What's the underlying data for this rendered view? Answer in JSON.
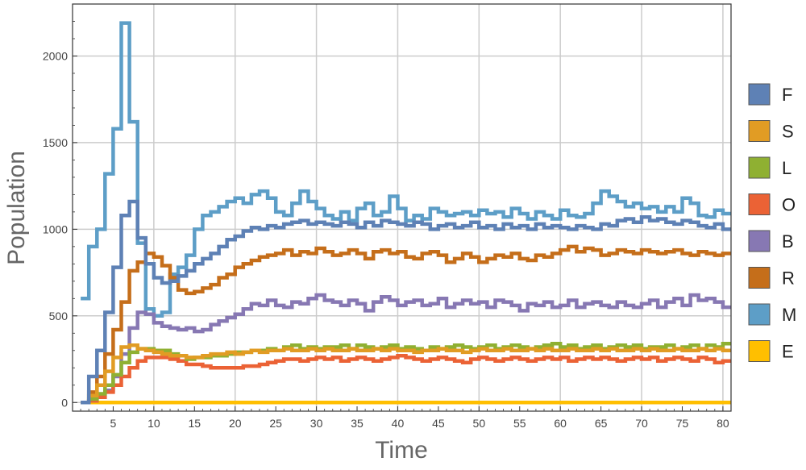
{
  "chart_data": {
    "type": "line",
    "step": true,
    "title": "",
    "xlabel": "Time",
    "ylabel": "Population",
    "xlim": [
      0,
      81
    ],
    "ylim": [
      -50,
      2300
    ],
    "xticks": [
      5,
      10,
      15,
      20,
      25,
      30,
      35,
      40,
      45,
      50,
      55,
      60,
      65,
      70,
      75,
      80
    ],
    "yticks": [
      0,
      500,
      1000,
      1500,
      2000
    ],
    "grid": true,
    "legend_position": "right",
    "x": [
      1,
      2,
      3,
      4,
      5,
      6,
      7,
      8,
      9,
      10,
      11,
      12,
      13,
      14,
      15,
      16,
      17,
      18,
      19,
      20,
      21,
      22,
      23,
      24,
      25,
      26,
      27,
      28,
      29,
      30,
      31,
      32,
      33,
      34,
      35,
      36,
      37,
      38,
      39,
      40,
      41,
      42,
      43,
      44,
      45,
      46,
      47,
      48,
      49,
      50,
      51,
      52,
      53,
      54,
      55,
      56,
      57,
      58,
      59,
      60,
      61,
      62,
      63,
      64,
      65,
      66,
      67,
      68,
      69,
      70,
      71,
      72,
      73,
      74,
      75,
      76,
      77,
      78,
      79,
      80
    ],
    "series": [
      {
        "name": "F",
        "color": "#5E81B5",
        "values": [
          0,
          150,
          300,
          520,
          780,
          1080,
          1160,
          950,
          800,
          720,
          690,
          700,
          730,
          760,
          800,
          830,
          860,
          900,
          940,
          960,
          990,
          1010,
          1000,
          1020,
          1010,
          1030,
          1040,
          1050,
          1030,
          1040,
          1030,
          1020,
          1040,
          1030,
          1010,
          1040,
          1020,
          1050,
          1040,
          1030,
          1020,
          1040,
          1030,
          1000,
          1020,
          1030,
          1010,
          1020,
          1040,
          1010,
          1020,
          1000,
          1030,
          1010,
          1020,
          1000,
          1030,
          1010,
          1020,
          1010,
          1000,
          1020,
          1010,
          1000,
          1030,
          1020,
          1050,
          1060,
          1040,
          1070,
          1050,
          1060,
          1040,
          1030,
          1050,
          1040,
          1020,
          1010,
          1030,
          1000
        ]
      },
      {
        "name": "S",
        "color": "#E19C24",
        "values": [
          0,
          40,
          100,
          180,
          260,
          320,
          330,
          310,
          300,
          290,
          280,
          270,
          270,
          260,
          260,
          270,
          280,
          280,
          290,
          280,
          290,
          300,
          290,
          300,
          300,
          310,
          300,
          300,
          310,
          300,
          310,
          300,
          300,
          310,
          300,
          300,
          310,
          300,
          310,
          300,
          300,
          290,
          300,
          300,
          310,
          300,
          300,
          290,
          300,
          310,
          300,
          300,
          310,
          300,
          300,
          310,
          300,
          310,
          300,
          300,
          310,
          300,
          300,
          310,
          300,
          310,
          300,
          300,
          310,
          300,
          310,
          300,
          300,
          310,
          300,
          300,
          310,
          300,
          310,
          300
        ]
      },
      {
        "name": "L",
        "color": "#8FB032",
        "values": [
          0,
          20,
          50,
          100,
          160,
          230,
          290,
          310,
          310,
          300,
          300,
          280,
          270,
          250,
          260,
          260,
          270,
          270,
          280,
          290,
          290,
          300,
          300,
          310,
          300,
          320,
          330,
          310,
          320,
          310,
          320,
          320,
          330,
          310,
          330,
          320,
          310,
          320,
          330,
          310,
          320,
          310,
          300,
          320,
          310,
          320,
          330,
          320,
          310,
          320,
          330,
          310,
          320,
          330,
          320,
          310,
          320,
          330,
          340,
          320,
          330,
          310,
          320,
          330,
          310,
          320,
          330,
          320,
          330,
          310,
          320,
          320,
          330,
          310,
          320,
          330,
          310,
          330,
          320,
          340
        ]
      },
      {
        "name": "O",
        "color": "#EB6235",
        "values": [
          0,
          10,
          30,
          60,
          100,
          150,
          200,
          240,
          260,
          260,
          260,
          250,
          240,
          220,
          220,
          210,
          200,
          200,
          200,
          200,
          210,
          210,
          220,
          230,
          240,
          250,
          250,
          240,
          250,
          260,
          250,
          260,
          240,
          250,
          260,
          250,
          240,
          250,
          260,
          270,
          260,
          250,
          240,
          250,
          260,
          250,
          240,
          230,
          250,
          260,
          250,
          240,
          250,
          260,
          250,
          240,
          250,
          260,
          250,
          260,
          240,
          250,
          260,
          250,
          260,
          250,
          240,
          250,
          260,
          250,
          260,
          240,
          250,
          260,
          250,
          240,
          260,
          250,
          230,
          240
        ]
      },
      {
        "name": "B",
        "color": "#8778B3",
        "values": [
          0,
          10,
          30,
          70,
          150,
          280,
          430,
          520,
          510,
          460,
          440,
          430,
          420,
          430,
          410,
          420,
          450,
          470,
          490,
          510,
          540,
          570,
          560,
          590,
          560,
          550,
          580,
          570,
          600,
          620,
          590,
          580,
          560,
          590,
          570,
          530,
          580,
          610,
          590,
          560,
          580,
          590,
          560,
          570,
          600,
          550,
          570,
          590,
          570,
          580,
          550,
          590,
          580,
          560,
          530,
          570,
          560,
          580,
          550,
          560,
          590,
          550,
          570,
          580,
          560,
          550,
          580,
          560,
          550,
          570,
          590,
          550,
          580,
          600,
          560,
          620,
          590,
          600,
          580,
          550
        ]
      },
      {
        "name": "R",
        "color": "#C56E1A",
        "values": [
          0,
          60,
          150,
          280,
          420,
          580,
          760,
          810,
          860,
          840,
          790,
          720,
          650,
          630,
          640,
          660,
          680,
          720,
          740,
          780,
          800,
          820,
          840,
          850,
          860,
          880,
          850,
          870,
          860,
          890,
          870,
          850,
          860,
          880,
          860,
          830,
          870,
          880,
          860,
          870,
          840,
          830,
          860,
          870,
          850,
          810,
          830,
          860,
          840,
          810,
          830,
          850,
          840,
          860,
          830,
          820,
          850,
          840,
          860,
          880,
          900,
          870,
          890,
          880,
          850,
          860,
          880,
          870,
          860,
          880,
          870,
          860,
          870,
          880,
          860,
          850,
          870,
          860,
          850,
          860
        ]
      },
      {
        "name": "M",
        "color": "#5D9EC7",
        "values": [
          600,
          900,
          1000,
          1320,
          1580,
          2190,
          1620,
          920,
          540,
          500,
          520,
          740,
          780,
          850,
          1000,
          1080,
          1100,
          1130,
          1160,
          1180,
          1150,
          1200,
          1220,
          1180,
          1100,
          1080,
          1150,
          1220,
          1160,
          1120,
          1080,
          1060,
          1100,
          1050,
          1120,
          1150,
          1080,
          1100,
          1190,
          1120,
          1050,
          1080,
          1060,
          1120,
          1100,
          1080,
          1090,
          1100,
          1080,
          1110,
          1090,
          1100,
          1070,
          1120,
          1090,
          1060,
          1100,
          1080,
          1060,
          1110,
          1080,
          1070,
          1090,
          1150,
          1220,
          1190,
          1160,
          1130,
          1150,
          1120,
          1130,
          1100,
          1130,
          1100,
          1180,
          1150,
          1080,
          1070,
          1110,
          1090
        ]
      },
      {
        "name": "E",
        "color": "#FFBF00",
        "values": [
          0,
          0,
          0,
          0,
          0,
          0,
          0,
          0,
          0,
          0,
          0,
          0,
          0,
          0,
          0,
          0,
          0,
          0,
          0,
          0,
          0,
          0,
          0,
          0,
          0,
          0,
          0,
          0,
          0,
          0,
          0,
          0,
          0,
          0,
          0,
          0,
          0,
          0,
          0,
          0,
          0,
          0,
          0,
          0,
          0,
          0,
          0,
          0,
          0,
          0,
          0,
          0,
          0,
          0,
          0,
          0,
          0,
          0,
          0,
          0,
          0,
          0,
          0,
          0,
          0,
          0,
          0,
          0,
          0,
          0,
          0,
          0,
          0,
          0,
          0,
          0,
          0,
          0,
          0,
          0
        ]
      }
    ]
  }
}
